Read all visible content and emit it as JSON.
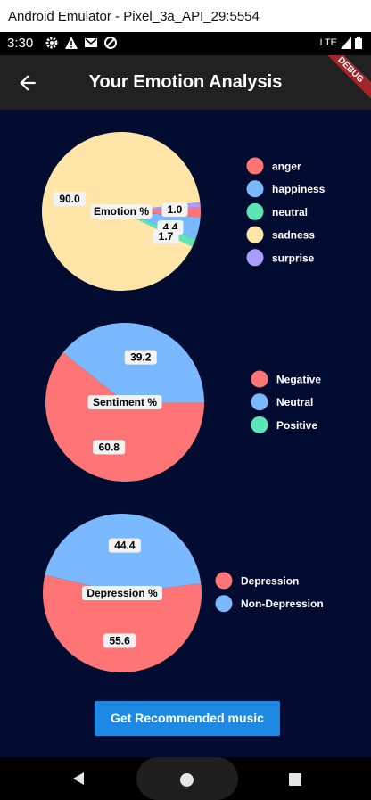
{
  "window": {
    "title": "Android Emulator - Pixel_3a_API_29:5554"
  },
  "status_bar": {
    "time": "3:30",
    "network": "LTE",
    "icons": [
      "settings-icon",
      "warning-icon",
      "gmail-icon",
      "block-icon"
    ]
  },
  "app_bar": {
    "title": "Your Emotion Analysis",
    "back_icon": "arrow-back-icon",
    "debug_label": "DEBUG"
  },
  "colors": {
    "red": "#ff7575",
    "blue": "#7ab8ff",
    "green": "#5ce6b8",
    "yellow": "#ffe6a8",
    "purple": "#a89cff",
    "background": "#020b30",
    "button": "#1e88e5"
  },
  "chart_data": [
    {
      "type": "pie",
      "title": "Emotion %",
      "series": [
        {
          "name": "anger",
          "value": 2.0,
          "color": "#ff7575",
          "label": ""
        },
        {
          "name": "happiness",
          "value": 4.4,
          "color": "#7ab8ff",
          "label": "4.4"
        },
        {
          "name": "neutral",
          "value": 1.7,
          "color": "#5ce6b8",
          "label": "1.7"
        },
        {
          "name": "sadness",
          "value": 90.0,
          "color": "#ffe6a8",
          "label": "90.0"
        },
        {
          "name": "surprise",
          "value": 1.0,
          "color": "#a89cff",
          "label": "1.0"
        }
      ]
    },
    {
      "type": "pie",
      "title": "Sentiment %",
      "series": [
        {
          "name": "Negative",
          "value": 60.8,
          "color": "#ff7575",
          "label": "60.8"
        },
        {
          "name": "Neutral",
          "value": 39.2,
          "color": "#7ab8ff",
          "label": "39.2"
        },
        {
          "name": "Positive",
          "value": 0.0,
          "color": "#5ce6b8",
          "label": ""
        }
      ]
    },
    {
      "type": "pie",
      "title": "Depression %",
      "series": [
        {
          "name": "Depression",
          "value": 55.6,
          "color": "#ff7575",
          "label": "55.6"
        },
        {
          "name": "Non-Depression",
          "value": 44.4,
          "color": "#7ab8ff",
          "label": "44.4"
        }
      ]
    }
  ],
  "button": {
    "label": "Get Recommended music"
  },
  "nav_bar": {
    "icons": [
      "nav-back-icon",
      "nav-home-icon",
      "nav-recents-icon"
    ]
  }
}
